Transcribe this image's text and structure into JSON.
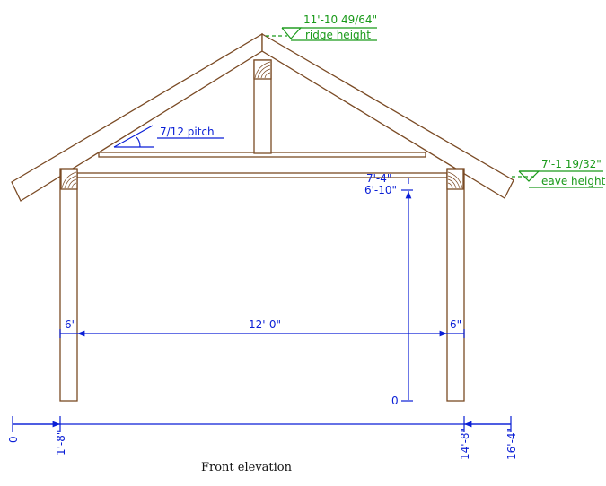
{
  "caption": "Front elevation",
  "ridge": {
    "value": "11'-10 49/64\"",
    "label": "ridge height"
  },
  "eave": {
    "value": "7'-1 19/32\"",
    "label": "eave height"
  },
  "pitch": "7/12 pitch",
  "beam_height": "7'-4\"",
  "post_height": "6'-10\"",
  "vertical_zero": "0",
  "span": "12'-0\"",
  "post_width_left": "6\"",
  "post_width_right": "6\"",
  "baseline_ticks": [
    "0",
    "1'-8\"",
    "14'-8\"",
    "16'-4\""
  ],
  "colors": {
    "wood": "#7a4a24",
    "dimension": "#0a1fd6",
    "elevation": "#1a9a1a"
  }
}
